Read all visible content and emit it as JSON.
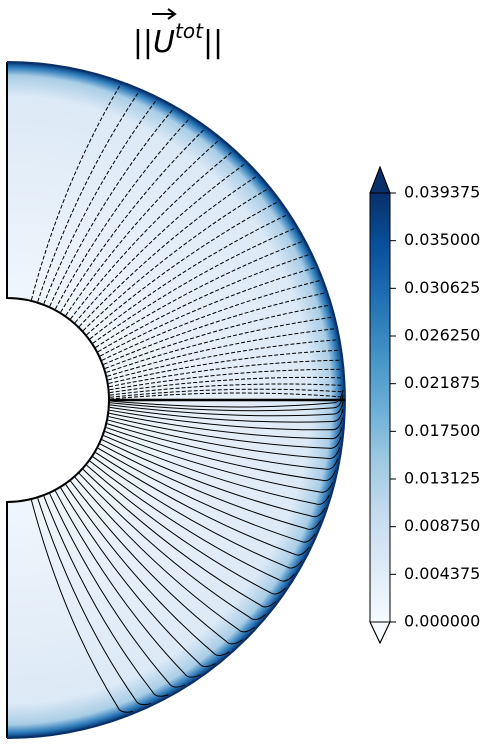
{
  "chart_data": {
    "type": "contour",
    "title": {
      "left": "||",
      "symbol": "U",
      "superscript": "tot",
      "right": "||"
    },
    "colormap": [
      "#f7fbff",
      "#deebf7",
      "#c6dbef",
      "#9ecae1",
      "#6baed6",
      "#4292c6",
      "#2171b5",
      "#08519c",
      "#08306b"
    ],
    "colorbar_extend": "both",
    "clim": [
      0,
      0.039375
    ],
    "colorbar_ticks": [
      {
        "value": 0,
        "label": "0.000000"
      },
      {
        "value": 0.004375,
        "label": "0.004375"
      },
      {
        "value": 0.00875,
        "label": "0.008750"
      },
      {
        "value": 0.013125,
        "label": "0.013125"
      },
      {
        "value": 0.0175,
        "label": "0.017500"
      },
      {
        "value": 0.021875,
        "label": "0.021875"
      },
      {
        "value": 0.02625,
        "label": "0.026250"
      },
      {
        "value": 0.030625,
        "label": "0.030625"
      },
      {
        "value": 0.035,
        "label": "0.035000"
      },
      {
        "value": 0.039375,
        "label": "0.039375"
      }
    ]
  }
}
